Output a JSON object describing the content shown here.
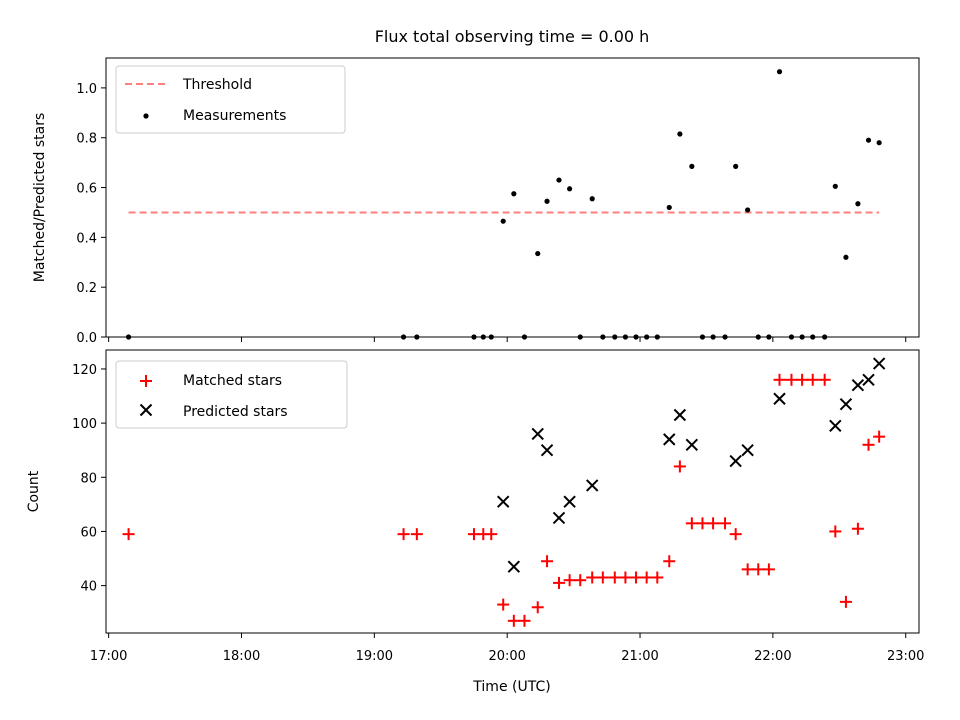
{
  "chart_data": [
    {
      "type": "scatter",
      "title": "Flux total observing time = 0.00 h",
      "xlabel": "",
      "ylabel": "Matched/Predicted stars",
      "xlim": [
        16.98,
        23.1
      ],
      "ylim": [
        0,
        1.12
      ],
      "yticks": [
        0.0,
        0.2,
        0.4,
        0.6,
        0.8,
        1.0
      ],
      "ytick_labels": [
        "0.0",
        "0.2",
        "0.4",
        "0.6",
        "0.8",
        "1.0"
      ],
      "legend_position": "top-left",
      "threshold": {
        "name": "Threshold",
        "color": "#ff7f7f",
        "value": 0.5,
        "x_start": 17.15,
        "x_end": 22.8
      },
      "series": [
        {
          "name": "Measurements",
          "color": "#000000",
          "marker": "dot",
          "x": [
            17.15,
            19.22,
            19.32,
            19.75,
            19.82,
            19.88,
            19.97,
            20.05,
            20.13,
            20.23,
            20.3,
            20.39,
            20.47,
            20.55,
            20.64,
            20.72,
            20.81,
            20.89,
            20.97,
            21.05,
            21.13,
            21.22,
            21.3,
            21.39,
            21.47,
            21.55,
            21.64,
            21.72,
            21.81,
            21.89,
            21.97,
            22.05,
            22.14,
            22.22,
            22.3,
            22.39,
            22.47,
            22.55,
            22.64,
            22.72,
            22.8
          ],
          "y": [
            0.0,
            0.0,
            0.0,
            0.0,
            0.0,
            0.0,
            0.465,
            0.575,
            0.0,
            0.335,
            0.545,
            0.63,
            0.595,
            0.0,
            0.555,
            0.0,
            0.0,
            0.0,
            0.0,
            0.0,
            0.0,
            0.52,
            0.815,
            0.685,
            0.0,
            0.0,
            0.0,
            0.685,
            0.51,
            0.0,
            0.0,
            1.065,
            0.0,
            0.0,
            0.0,
            0.0,
            0.605,
            0.32,
            0.535,
            0.79,
            0.78
          ]
        }
      ]
    },
    {
      "type": "scatter",
      "title": "",
      "xlabel": "Time (UTC)",
      "ylabel": "Count",
      "xlim": [
        16.98,
        23.1
      ],
      "ylim": [
        22.5,
        127
      ],
      "yticks": [
        40,
        60,
        80,
        100,
        120
      ],
      "ytick_labels": [
        "40",
        "60",
        "80",
        "100",
        "120"
      ],
      "xticks": [
        17,
        18,
        19,
        20,
        21,
        22,
        23
      ],
      "xtick_labels": [
        "17:00",
        "18:00",
        "19:00",
        "20:00",
        "21:00",
        "22:00",
        "23:00"
      ],
      "legend_position": "top-left",
      "series": [
        {
          "name": "Matched stars",
          "color": "#ff0000",
          "marker": "plus",
          "x": [
            17.15,
            19.22,
            19.32,
            19.75,
            19.82,
            19.88,
            19.97,
            20.05,
            20.13,
            20.23,
            20.3,
            20.39,
            20.47,
            20.55,
            20.64,
            20.72,
            20.81,
            20.89,
            20.97,
            21.05,
            21.13,
            21.22,
            21.3,
            21.39,
            21.47,
            21.55,
            21.64,
            21.72,
            21.81,
            21.89,
            21.97,
            22.05,
            22.14,
            22.22,
            22.3,
            22.39,
            22.47,
            22.55,
            22.64,
            22.72,
            22.8
          ],
          "y": [
            59,
            59,
            59,
            59,
            59,
            59,
            33,
            27,
            27,
            32,
            49,
            41,
            42,
            42,
            43,
            43,
            43,
            43,
            43,
            43,
            43,
            49,
            84,
            63,
            63,
            63,
            63,
            59,
            46,
            46,
            46,
            116,
            116,
            116,
            116,
            116,
            60,
            34,
            61,
            92,
            95
          ]
        },
        {
          "name": "Predicted stars",
          "color": "#000000",
          "marker": "x",
          "x": [
            19.97,
            20.05,
            20.23,
            20.3,
            20.39,
            20.47,
            20.64,
            21.22,
            21.3,
            21.39,
            21.72,
            21.81,
            22.05,
            22.47,
            22.55,
            22.64,
            22.72,
            22.8
          ],
          "y": [
            71,
            47,
            96,
            90,
            65,
            71,
            77,
            94,
            103,
            92,
            86,
            90,
            109,
            99,
            107,
            114,
            116,
            122
          ]
        }
      ]
    }
  ]
}
